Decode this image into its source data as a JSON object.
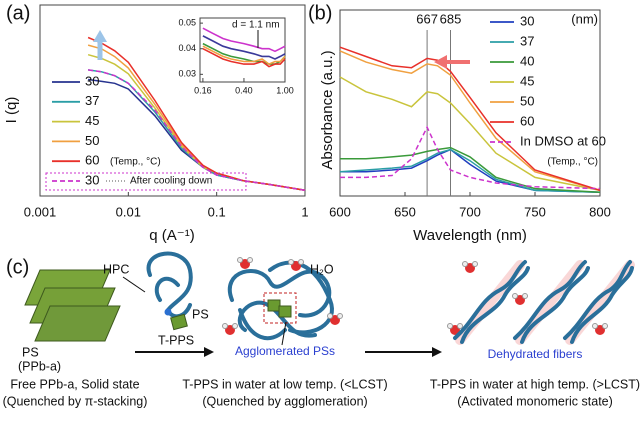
{
  "chart_data": [
    {
      "type": "line",
      "panel_label": "(a)",
      "xlabel": "q (A⁻¹)",
      "ylabel": "I (q)",
      "log_x": true,
      "xlim": [
        0.001,
        1
      ],
      "ylim": [
        0,
        1
      ],
      "xticks": [
        0.001,
        0.01,
        0.1,
        1
      ],
      "annotations": [
        "(Temp., °C)",
        "After cooling down"
      ],
      "x": [
        0.0035,
        0.005,
        0.007,
        0.01,
        0.02,
        0.04,
        0.07,
        0.1,
        0.2,
        0.4,
        1
      ],
      "series": [
        {
          "name": "30",
          "color": "#26338f",
          "values": [
            0.61,
            0.6,
            0.59,
            0.56,
            0.42,
            0.24,
            0.15,
            0.11,
            0.08,
            0.06,
            0.03
          ]
        },
        {
          "name": "37",
          "color": "#2b9ea6",
          "values": [
            0.66,
            0.65,
            0.63,
            0.59,
            0.44,
            0.25,
            0.15,
            0.11,
            0.08,
            0.06,
            0.03
          ]
        },
        {
          "name": "45",
          "color": "#c9c43c",
          "values": [
            0.74,
            0.72,
            0.69,
            0.64,
            0.46,
            0.26,
            0.15,
            0.12,
            0.08,
            0.06,
            0.03
          ]
        },
        {
          "name": "50",
          "color": "#f0a040",
          "values": [
            0.79,
            0.77,
            0.73,
            0.67,
            0.48,
            0.27,
            0.16,
            0.12,
            0.08,
            0.06,
            0.03
          ]
        },
        {
          "name": "60",
          "color": "#e8302a",
          "values": [
            0.83,
            0.8,
            0.76,
            0.7,
            0.5,
            0.28,
            0.16,
            0.12,
            0.08,
            0.06,
            0.03
          ]
        },
        {
          "name": "30",
          "color": "#cc33cc",
          "dashed": true,
          "values": [
            0.66,
            0.65,
            0.63,
            0.59,
            0.45,
            0.26,
            0.15,
            0.11,
            0.08,
            0.06,
            0.03
          ]
        }
      ]
    },
    {
      "type": "line",
      "log_x": true,
      "annotations": [
        "d = 1.1 nm"
      ],
      "xlim": [
        0.15,
        1
      ],
      "ylim": [
        0.027,
        0.052
      ],
      "xticks": [
        0.16,
        {
          "value": 0.4,
          "label": "0.40"
        },
        {
          "value": 1,
          "label": "1.00"
        }
      ],
      "yticks": [
        0.03,
        0.04,
        0.05
      ],
      "x": [
        0.16,
        0.2,
        0.25,
        0.3,
        0.4,
        0.5,
        0.6,
        0.7,
        0.8,
        0.9,
        1
      ],
      "series": [
        {
          "color": "#cc33cc",
          "values": [
            0.048,
            0.046,
            0.044,
            0.043,
            0.042,
            0.041,
            0.04,
            0.04,
            0.039,
            0.04,
            0.041
          ]
        },
        {
          "color": "#3a3a9a",
          "values": [
            0.045,
            0.043,
            0.041,
            0.04,
            0.039,
            0.038,
            0.037,
            0.037,
            0.036,
            0.037,
            0.038
          ]
        },
        {
          "color": "#3a9a3a",
          "values": [
            0.042,
            0.04,
            0.038,
            0.037,
            0.036,
            0.035,
            0.035,
            0.034,
            0.034,
            0.035,
            0.037
          ]
        },
        {
          "color": "#f0a040",
          "values": [
            0.041,
            0.039,
            0.037,
            0.036,
            0.035,
            0.035,
            0.036,
            0.034,
            0.035,
            0.035,
            0.037
          ]
        },
        {
          "color": "#e8302a",
          "values": [
            0.04,
            0.038,
            0.036,
            0.035,
            0.034,
            0.034,
            0.035,
            0.033,
            0.034,
            0.034,
            0.036
          ]
        }
      ]
    },
    {
      "type": "line",
      "panel_label": "(b)",
      "xlabel": "Wavelength (nm)",
      "ylabel": "Absorbance (a.u.)",
      "xlim": [
        600,
        800
      ],
      "ylim": [
        0,
        1
      ],
      "xticks": [
        600,
        650,
        700,
        750,
        800
      ],
      "vlines": [
        667,
        685
      ],
      "annotations": [
        "(nm)",
        "(Temp., °C)"
      ],
      "x": [
        600,
        620,
        640,
        655,
        667,
        675,
        685,
        700,
        720,
        750,
        800
      ],
      "series": [
        {
          "name": "30",
          "color": "#2040c0",
          "values": [
            0.13,
            0.13,
            0.14,
            0.15,
            0.19,
            0.22,
            0.25,
            0.17,
            0.08,
            0.03,
            0.02
          ]
        },
        {
          "name": "37",
          "color": "#2b9ea6",
          "values": [
            0.13,
            0.14,
            0.15,
            0.16,
            0.2,
            0.23,
            0.25,
            0.19,
            0.09,
            0.03,
            0.02
          ]
        },
        {
          "name": "40",
          "color": "#3a9a3a",
          "values": [
            0.2,
            0.2,
            0.21,
            0.22,
            0.24,
            0.25,
            0.26,
            0.21,
            0.1,
            0.04,
            0.02
          ]
        },
        {
          "name": "45",
          "color": "#c9c43c",
          "values": [
            0.64,
            0.56,
            0.52,
            0.48,
            0.56,
            0.55,
            0.5,
            0.39,
            0.23,
            0.1,
            0.03
          ]
        },
        {
          "name": "50",
          "color": "#f0a040",
          "values": [
            0.78,
            0.72,
            0.68,
            0.66,
            0.71,
            0.7,
            0.65,
            0.5,
            0.31,
            0.13,
            0.03
          ]
        },
        {
          "name": "60",
          "color": "#e8302a",
          "values": [
            0.8,
            0.75,
            0.7,
            0.69,
            0.74,
            0.73,
            0.67,
            0.53,
            0.34,
            0.14,
            0.03
          ]
        },
        {
          "name": "In DMSO at 60",
          "color": "#cc33cc",
          "dashed": true,
          "values": [
            0.1,
            0.1,
            0.11,
            0.2,
            0.37,
            0.25,
            0.14,
            0.1,
            0.07,
            0.05,
            0.04
          ]
        }
      ]
    }
  ],
  "diagram": {
    "panel_label": "(c)",
    "labels": {
      "hpc": "HPC",
      "ps": "PS",
      "tpps": "T-PPS",
      "ps_solid": "PS",
      "ppba": "(PPb-a)",
      "water": "H₂O",
      "agglomerated": "Agglomerated PSs",
      "fibers": "Dehydrated fibers"
    },
    "captions": [
      [
        "Free PPb-a, Solid state",
        "(Quenched by π-stacking)"
      ],
      [
        "T-PPS in water at low temp. (<LCST)",
        "(Quenched by agglomeration)"
      ],
      [
        "T-PPS in water at high temp. (>LCST)",
        "(Activated monomeric state)"
      ]
    ]
  }
}
